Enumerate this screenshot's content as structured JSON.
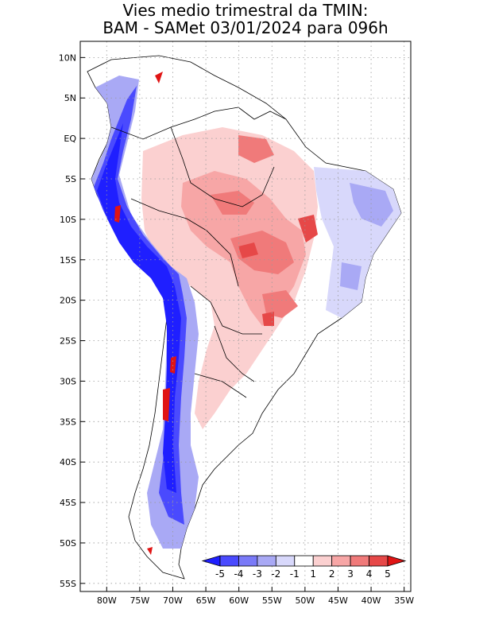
{
  "title": {
    "line1": "Vies medio trimestral da TMIN:",
    "line2": "BAM - SAMet 03/01/2024  para 096h"
  },
  "map": {
    "lon_labels": [
      "80W",
      "75W",
      "70W",
      "65W",
      "60W",
      "55W",
      "50W",
      "45W",
      "40W",
      "35W"
    ],
    "lat_labels": [
      "10N",
      "5N",
      "EQ",
      "5S",
      "10S",
      "15S",
      "20S",
      "25S",
      "30S",
      "35S",
      "40S",
      "45S",
      "50S",
      "55S"
    ],
    "lon_range": [
      -84,
      -34
    ],
    "lat_range": [
      -56,
      12
    ]
  },
  "colorbar": {
    "labels": [
      "-5",
      "-4",
      "-3",
      "-2",
      "-1",
      "1",
      "2",
      "3",
      "4",
      "5"
    ],
    "colors": [
      "#1f1fff",
      "#4a4afe",
      "#7a7af8",
      "#a9a9f5",
      "#d8d8fb",
      "#ffffff",
      "#fbd0d0",
      "#f7a6a6",
      "#f07a7a",
      "#e64848",
      "#e01414"
    ]
  }
}
